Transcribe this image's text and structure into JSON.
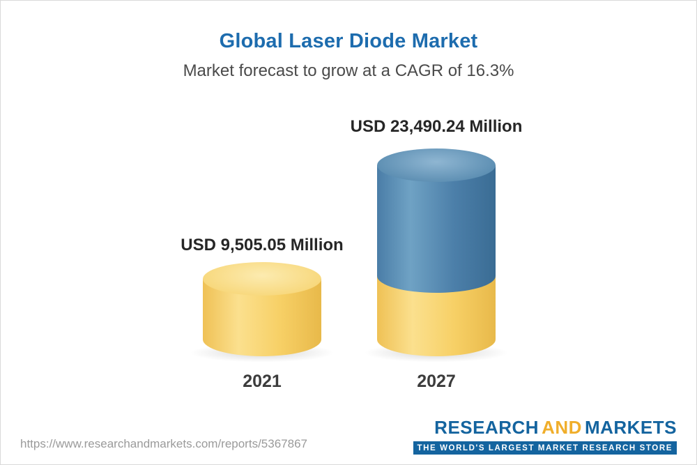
{
  "header": {
    "title": "Global Laser Diode Market",
    "subtitle": "Market forecast to grow at a CAGR of 16.3%"
  },
  "chart_data": {
    "type": "bar",
    "style": "3d-cylinder",
    "title": "Global Laser Diode Market",
    "subtitle": "Market forecast to grow at a CAGR of 16.3%",
    "unit": "USD Million",
    "cagr": "16.3%",
    "categories": [
      "2021",
      "2027"
    ],
    "values": [
      9505.05,
      23490.24
    ],
    "value_labels": [
      "USD 9,505.05 Million",
      "USD 23,490.24 Million"
    ],
    "layout": {
      "grid": false,
      "legend": false,
      "note": "2027 cylinder shows 2021 value as yellow base with blue growth portion on top"
    },
    "colors": {
      "bar_2021": "#f6ce63",
      "bar_2027_upper": "#4c7fa9",
      "bar_2027_lower": "#f6ce63",
      "title": "#1d6cae"
    }
  },
  "footer": {
    "url": "https://www.researchandmarkets.com/reports/5367867",
    "logo": {
      "word1": "RESEARCH",
      "word2": "AND",
      "word3": "MARKETS",
      "tagline": "THE WORLD'S LARGEST MARKET RESEARCH STORE"
    }
  }
}
